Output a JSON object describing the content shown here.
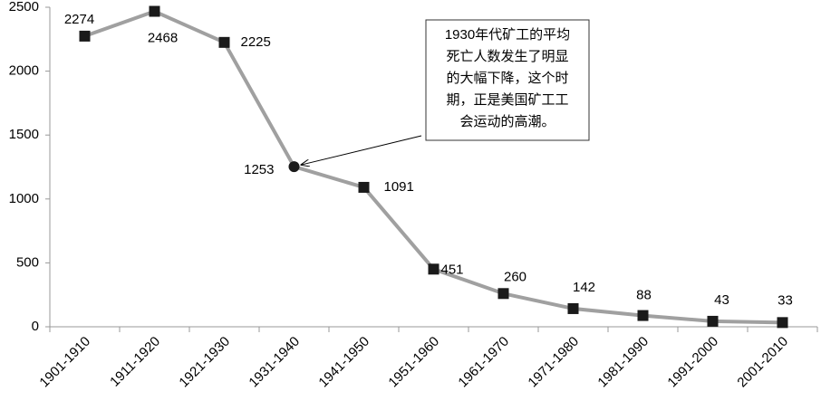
{
  "chart_data": {
    "type": "line",
    "categories": [
      "1901-1910",
      "1911-1920",
      "1921-1930",
      "1931-1940",
      "1941-1950",
      "1951-1960",
      "1961-1970",
      "1971-1980",
      "1981-1990",
      "1991-2000",
      "2001-2010"
    ],
    "values": [
      2274,
      2468,
      2225,
      1253,
      1091,
      451,
      260,
      142,
      88,
      43,
      33
    ],
    "color": "#a0a0a0",
    "marker_color": "#1a1a1a",
    "ylim": [
      0,
      2500
    ],
    "yticks": [
      0,
      500,
      1000,
      1500,
      2000,
      2500
    ],
    "grid": false,
    "annotation": {
      "at": "1931-1940",
      "lines": [
        "1930年代矿工的平均",
        "死亡人数发生了明显",
        "的大幅下降，这个时",
        "期，正是美国矿工工",
        "会运动的高潮。"
      ]
    }
  }
}
